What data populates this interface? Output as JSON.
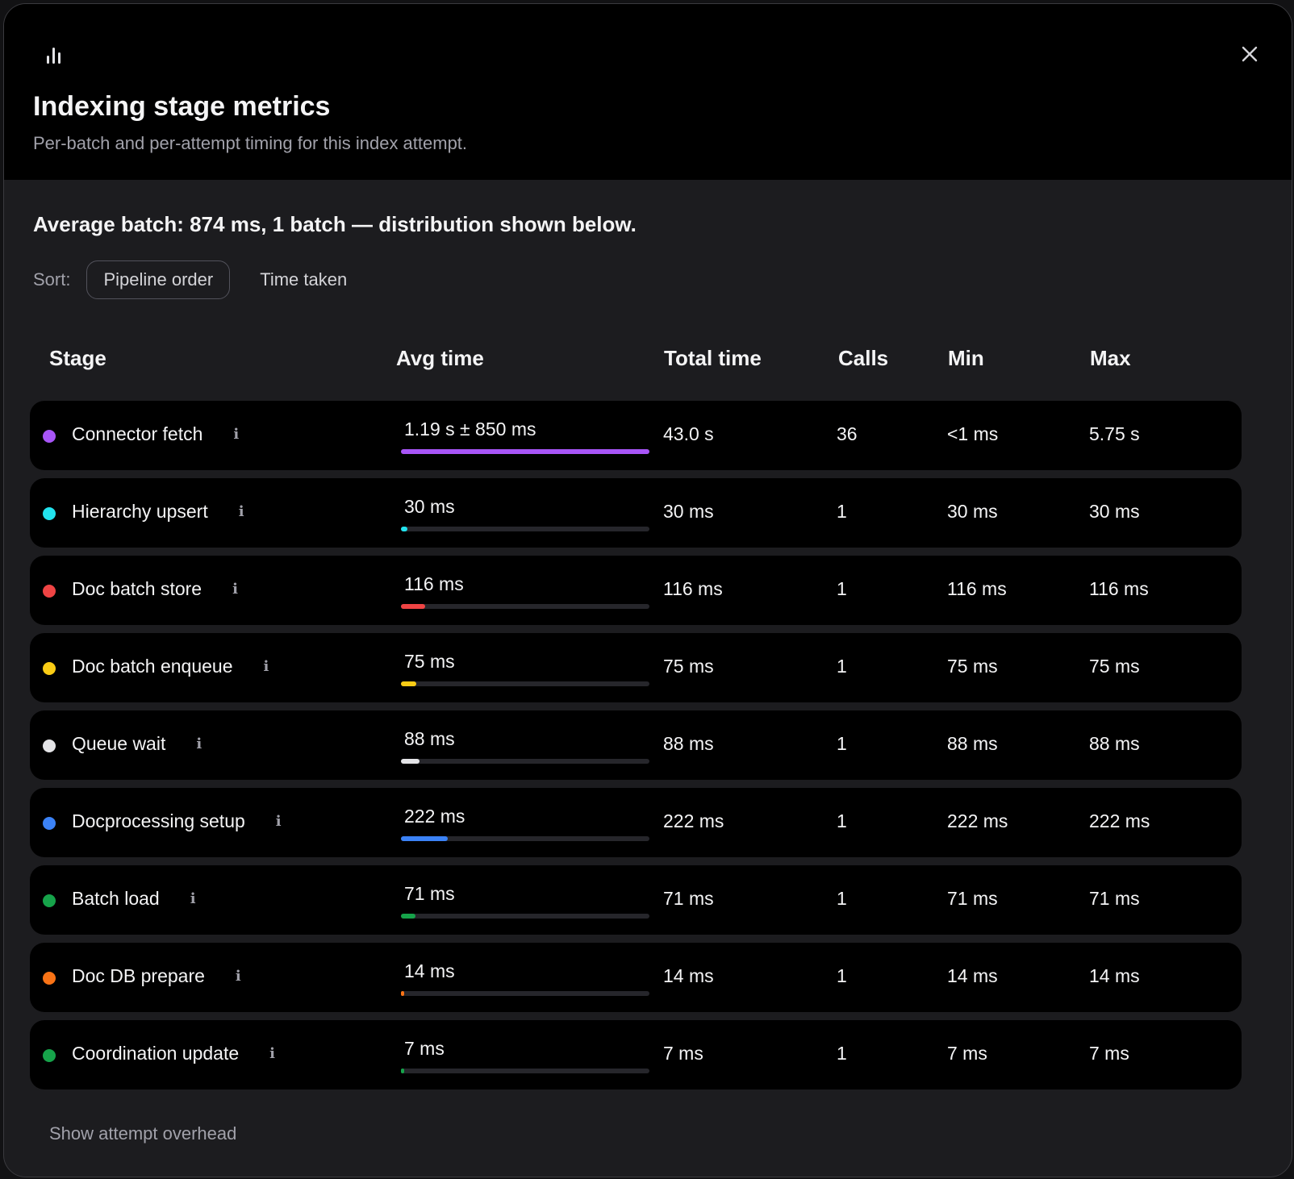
{
  "header": {
    "icon": "bar-chart-icon",
    "title": "Indexing stage metrics",
    "subtitle": "Per-batch and per-attempt timing for this index attempt.",
    "close_icon": "close-icon"
  },
  "summary": "Average batch: 874 ms, 1 batch — distribution shown below.",
  "sort": {
    "label": "Sort:",
    "options": [
      "Pipeline order",
      "Time taken"
    ],
    "selected": "Pipeline order"
  },
  "table": {
    "columns": {
      "stage": "Stage",
      "avg": "Avg time",
      "total": "Total time",
      "calls": "Calls",
      "min": "Min",
      "max": "Max"
    },
    "rows": [
      {
        "name": "Connector fetch",
        "color": "#a855f7",
        "avg": "1.19 s ± 850 ms",
        "bar": 1.0,
        "total": "43.0 s",
        "calls": "36",
        "min": "<1 ms",
        "max": "5.75 s"
      },
      {
        "name": "Hierarchy upsert",
        "color": "#22e3ee",
        "avg": "30 ms",
        "bar": 0.025,
        "total": "30 ms",
        "calls": "1",
        "min": "30 ms",
        "max": "30 ms"
      },
      {
        "name": "Doc batch store",
        "color": "#ef4444",
        "avg": "116 ms",
        "bar": 0.097,
        "total": "116 ms",
        "calls": "1",
        "min": "116 ms",
        "max": "116 ms"
      },
      {
        "name": "Doc batch enqueue",
        "color": "#facc15",
        "avg": "75 ms",
        "bar": 0.063,
        "total": "75 ms",
        "calls": "1",
        "min": "75 ms",
        "max": "75 ms"
      },
      {
        "name": "Queue wait",
        "color": "#e4e4e7",
        "avg": "88 ms",
        "bar": 0.074,
        "total": "88 ms",
        "calls": "1",
        "min": "88 ms",
        "max": "88 ms"
      },
      {
        "name": "Docprocessing setup",
        "color": "#3b82f6",
        "avg": "222 ms",
        "bar": 0.187,
        "total": "222 ms",
        "calls": "1",
        "min": "222 ms",
        "max": "222 ms"
      },
      {
        "name": "Batch load",
        "color": "#16a34a",
        "avg": "71 ms",
        "bar": 0.06,
        "total": "71 ms",
        "calls": "1",
        "min": "71 ms",
        "max": "71 ms"
      },
      {
        "name": "Doc DB prepare",
        "color": "#f97316",
        "avg": "14 ms",
        "bar": 0.012,
        "total": "14 ms",
        "calls": "1",
        "min": "14 ms",
        "max": "14 ms"
      },
      {
        "name": "Coordination update",
        "color": "#16a34a",
        "avg": "7 ms",
        "bar": 0.006,
        "total": "7 ms",
        "calls": "1",
        "min": "7 ms",
        "max": "7 ms"
      }
    ]
  },
  "footer": {
    "overhead_link": "Show attempt overhead"
  }
}
